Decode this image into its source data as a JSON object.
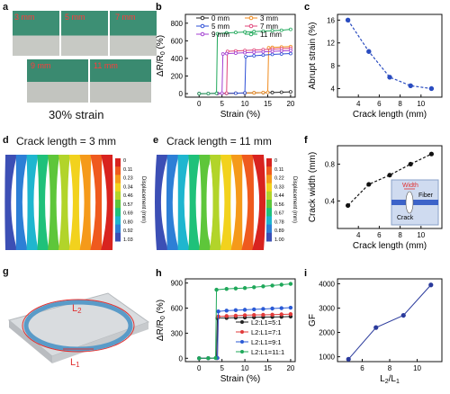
{
  "panels": {
    "a": {
      "letter": "a",
      "photo_labels": [
        "3 mm",
        "5 mm",
        "7 mm",
        "9 mm",
        "11 mm"
      ],
      "caption": "30% strain"
    },
    "d": {
      "letter": "d",
      "title": "Crack length = 3 mm",
      "colorbar_ticks": [
        "0",
        "0.11",
        "0.23",
        "0.34",
        "0.46",
        "0.57",
        "0.69",
        "0.80",
        "0.92",
        "1.03"
      ],
      "colorbar_label": "Displacement (mm)"
    },
    "e": {
      "letter": "e",
      "title": "Crack length = 11 mm",
      "colorbar_ticks": [
        "0",
        "0.11",
        "0.22",
        "0.33",
        "0.44",
        "0.56",
        "0.67",
        "0.78",
        "0.89",
        "1.00"
      ],
      "colorbar_label": "Displacement (mm)"
    },
    "g": {
      "letter": "g",
      "labels": [
        "L2",
        "L1"
      ]
    }
  },
  "chart_data": [
    {
      "id": "b",
      "letter": "b",
      "type": "line",
      "xlabel": "Strain (%)",
      "ylabel": "ΔR/R0 (%)",
      "xlim": [
        -3,
        21
      ],
      "ylim": [
        -40,
        900
      ],
      "xticks": [
        0,
        5,
        10,
        15,
        20
      ],
      "yticks": [
        0,
        200,
        400,
        600,
        800
      ],
      "legend_position": "top",
      "series": [
        {
          "name": "0 mm",
          "color": "#222222",
          "x": [
            0,
            2,
            4,
            6,
            8,
            10,
            12,
            14,
            16,
            18,
            20
          ],
          "y": [
            0,
            1,
            2,
            3,
            5,
            7,
            9,
            11,
            13,
            16,
            20
          ]
        },
        {
          "name": "3 mm",
          "color": "#f08a1c",
          "x": [
            0,
            2,
            4,
            6,
            8,
            10,
            12,
            14,
            15,
            15.2,
            16,
            18,
            20
          ],
          "y": [
            0,
            1,
            2,
            3,
            5,
            7,
            9,
            12,
            15,
            520,
            525,
            530,
            535
          ]
        },
        {
          "name": "5 mm",
          "color": "#2d4fd6",
          "x": [
            0,
            2,
            4,
            6,
            8,
            10,
            10.2,
            12,
            14,
            16,
            18,
            20
          ],
          "y": [
            0,
            1,
            2,
            3,
            5,
            8,
            420,
            430,
            438,
            445,
            450,
            455
          ]
        },
        {
          "name": "7 mm",
          "color": "#e0457a",
          "x": [
            0,
            2,
            4,
            6,
            6.2,
            8,
            10,
            12,
            14,
            16,
            18,
            20
          ],
          "y": [
            0,
            1,
            2,
            5,
            480,
            485,
            490,
            495,
            500,
            505,
            510,
            515
          ]
        },
        {
          "name": "9 mm",
          "color": "#a33fd1",
          "x": [
            0,
            2,
            4,
            5,
            5.2,
            6,
            8,
            10,
            12,
            14,
            16,
            18,
            20
          ],
          "y": [
            0,
            1,
            3,
            5,
            450,
            455,
            460,
            465,
            470,
            475,
            480,
            485,
            490
          ]
        },
        {
          "name": "11 mm",
          "color": "#1fa85a",
          "x": [
            0,
            2,
            3.8,
            4,
            6,
            8,
            10,
            12,
            14,
            16,
            18,
            20
          ],
          "y": [
            0,
            1,
            3,
            680,
            690,
            695,
            700,
            705,
            710,
            715,
            720,
            730
          ]
        }
      ]
    },
    {
      "id": "c",
      "letter": "c",
      "type": "scatter",
      "xlabel": "Crack length (mm)",
      "ylabel": "Abrupt strain (%)",
      "xlim": [
        2,
        12
      ],
      "ylim": [
        2.5,
        17
      ],
      "xticks": [
        4,
        6,
        8,
        10
      ],
      "yticks": [
        4,
        8,
        12,
        16
      ],
      "series": [
        {
          "color": "#2a4cc0",
          "x": [
            3,
            5,
            7,
            9,
            11
          ],
          "y": [
            16,
            10.5,
            6,
            4.5,
            4
          ]
        }
      ]
    },
    {
      "id": "f",
      "letter": "f",
      "type": "scatter",
      "xlabel": "Crack length (mm)",
      "ylabel": "Crack width (mm)",
      "xlim": [
        2,
        12
      ],
      "ylim": [
        0.1,
        1.0
      ],
      "xticks": [
        4,
        6,
        8,
        10
      ],
      "yticks": [
        0.4,
        0.8
      ],
      "inset": {
        "width_label": "Width",
        "fiber_label": "Fiber",
        "crack_label": "Crack"
      },
      "series": [
        {
          "color": "#111111",
          "x": [
            3,
            5,
            7,
            9,
            11
          ],
          "y": [
            0.35,
            0.58,
            0.68,
            0.8,
            0.91
          ]
        }
      ]
    },
    {
      "id": "h",
      "letter": "h",
      "type": "line",
      "xlabel": "Strain (%)",
      "ylabel": "ΔR/R0 (%)",
      "xlim": [
        -3,
        21
      ],
      "ylim": [
        -40,
        950
      ],
      "xticks": [
        0,
        5,
        10,
        15,
        20
      ],
      "yticks": [
        0,
        300,
        600,
        900
      ],
      "legend_position": "bottom-right",
      "series": [
        {
          "name": "L2:L1=5:1",
          "color": "#222222",
          "x": [
            0,
            2,
            3.8,
            4,
            6,
            8,
            10,
            12,
            14,
            16,
            18,
            20
          ],
          "y": [
            0,
            1,
            3,
            480,
            483,
            486,
            488,
            490,
            492,
            494,
            496,
            500
          ]
        },
        {
          "name": "L2:L1=7:1",
          "color": "#e03a3a",
          "x": [
            0,
            2,
            4,
            4.2,
            6,
            8,
            10,
            12,
            14,
            16,
            18,
            20
          ],
          "y": [
            0,
            1,
            3,
            500,
            505,
            510,
            515,
            518,
            520,
            522,
            525,
            528
          ]
        },
        {
          "name": "L2:L1=9:1",
          "color": "#2a5ad6",
          "x": [
            0,
            2,
            4,
            4.2,
            6,
            8,
            10,
            12,
            14,
            16,
            18,
            20
          ],
          "y": [
            0,
            1,
            3,
            560,
            570,
            575,
            580,
            585,
            590,
            595,
            600,
            605
          ]
        },
        {
          "name": "L2:L1=11:1",
          "color": "#1fa85a",
          "x": [
            0,
            2,
            3.6,
            3.8,
            6,
            8,
            10,
            12,
            14,
            16,
            18,
            20
          ],
          "y": [
            0,
            1,
            3,
            820,
            830,
            835,
            840,
            850,
            860,
            870,
            880,
            890
          ]
        }
      ]
    },
    {
      "id": "i",
      "letter": "i",
      "type": "line",
      "xlabel": "L2/L1",
      "ylabel": "GF",
      "xlim": [
        4.2,
        11.8
      ],
      "ylim": [
        800,
        4200
      ],
      "xticks": [
        6,
        8,
        10
      ],
      "yticks": [
        1000,
        2000,
        3000,
        4000
      ],
      "series": [
        {
          "color": "#2a3a9c",
          "x": [
            5,
            7,
            9,
            11
          ],
          "y": [
            900,
            2200,
            2700,
            3950
          ]
        }
      ]
    }
  ]
}
